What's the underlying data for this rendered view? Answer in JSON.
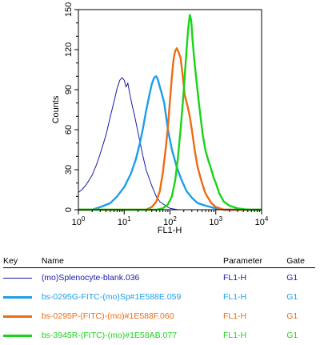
{
  "chart_data": {
    "type": "line",
    "title": "",
    "xlabel": "FL1-H",
    "ylabel": "Counts",
    "x_scale": "log",
    "xlim": [
      1,
      10000
    ],
    "ylim": [
      0,
      150
    ],
    "x_ticks": [
      {
        "value": 1,
        "base": "10",
        "exp": "0"
      },
      {
        "value": 10,
        "base": "10",
        "exp": "1"
      },
      {
        "value": 100,
        "base": "10",
        "exp": "2"
      },
      {
        "value": 1000,
        "base": "10",
        "exp": "3"
      },
      {
        "value": 10000,
        "base": "10",
        "exp": "4"
      }
    ],
    "y_ticks": [
      "0",
      "30",
      "60",
      "90",
      "120",
      "150"
    ],
    "grid": false,
    "series": [
      {
        "name": "(mo)Splenocyte-blank.036",
        "color": "#1a1aa8",
        "points": [
          [
            1,
            13
          ],
          [
            1.2,
            15
          ],
          [
            1.5,
            19
          ],
          [
            2,
            26
          ],
          [
            2.5,
            34
          ],
          [
            3,
            42
          ],
          [
            4,
            56
          ],
          [
            5,
            70
          ],
          [
            6,
            81
          ],
          [
            7,
            91
          ],
          [
            8,
            97
          ],
          [
            9,
            99
          ],
          [
            10,
            97
          ],
          [
            11,
            92
          ],
          [
            12,
            95
          ],
          [
            13,
            88
          ],
          [
            15,
            78
          ],
          [
            17,
            70
          ],
          [
            20,
            58
          ],
          [
            25,
            42
          ],
          [
            30,
            30
          ],
          [
            40,
            18
          ],
          [
            50,
            10
          ],
          [
            60,
            6
          ],
          [
            80,
            3
          ],
          [
            100,
            1
          ],
          [
            150,
            0
          ],
          [
            10000,
            0
          ]
        ]
      },
      {
        "name": "bs-0295G-FITC-(mo)Sp#1E588E.059",
        "color": "#1e9ee8",
        "points": [
          [
            1,
            0
          ],
          [
            2,
            0
          ],
          [
            3,
            2
          ],
          [
            5,
            5
          ],
          [
            7,
            10
          ],
          [
            10,
            17
          ],
          [
            14,
            27
          ],
          [
            18,
            38
          ],
          [
            22,
            50
          ],
          [
            26,
            62
          ],
          [
            30,
            74
          ],
          [
            35,
            85
          ],
          [
            40,
            94
          ],
          [
            45,
            99
          ],
          [
            50,
            100
          ],
          [
            55,
            97
          ],
          [
            60,
            92
          ],
          [
            65,
            88
          ],
          [
            75,
            80
          ],
          [
            90,
            60
          ],
          [
            110,
            45
          ],
          [
            140,
            32
          ],
          [
            180,
            22
          ],
          [
            230,
            14
          ],
          [
            300,
            9
          ],
          [
            400,
            5
          ],
          [
            600,
            3
          ],
          [
            1000,
            1
          ],
          [
            1500,
            0
          ],
          [
            10000,
            0
          ]
        ]
      },
      {
        "name": "bs-0295P-(FITC)-(mo)#1E588F.060",
        "color": "#ee6b12",
        "points": [
          [
            1,
            0
          ],
          [
            30,
            0
          ],
          [
            40,
            2
          ],
          [
            50,
            6
          ],
          [
            60,
            14
          ],
          [
            70,
            28
          ],
          [
            80,
            45
          ],
          [
            90,
            62
          ],
          [
            100,
            82
          ],
          [
            110,
            100
          ],
          [
            120,
            113
          ],
          [
            130,
            119
          ],
          [
            140,
            121
          ],
          [
            150,
            119
          ],
          [
            170,
            114
          ],
          [
            190,
            100
          ],
          [
            210,
            86
          ],
          [
            240,
            78
          ],
          [
            270,
            70
          ],
          [
            300,
            60
          ],
          [
            350,
            44
          ],
          [
            400,
            32
          ],
          [
            500,
            20
          ],
          [
            600,
            12
          ],
          [
            800,
            5
          ],
          [
            1000,
            2
          ],
          [
            1500,
            0
          ],
          [
            10000,
            0
          ]
        ]
      },
      {
        "name": "bs-3945R-(FITC)-(mo)#1E58AB.077",
        "color": "#19d419",
        "points": [
          [
            1,
            0
          ],
          [
            50,
            0
          ],
          [
            70,
            1
          ],
          [
            90,
            4
          ],
          [
            110,
            10
          ],
          [
            130,
            22
          ],
          [
            150,
            40
          ],
          [
            170,
            60
          ],
          [
            190,
            80
          ],
          [
            210,
            100
          ],
          [
            230,
            120
          ],
          [
            250,
            136
          ],
          [
            270,
            146
          ],
          [
            290,
            142
          ],
          [
            310,
            128
          ],
          [
            340,
            112
          ],
          [
            380,
            96
          ],
          [
            420,
            82
          ],
          [
            470,
            68
          ],
          [
            520,
            56
          ],
          [
            600,
            44
          ],
          [
            700,
            36
          ],
          [
            800,
            30
          ],
          [
            900,
            24
          ],
          [
            1000,
            20
          ],
          [
            1200,
            12
          ],
          [
            1500,
            6
          ],
          [
            2000,
            3
          ],
          [
            3000,
            1
          ],
          [
            5000,
            0
          ],
          [
            10000,
            0
          ]
        ]
      }
    ]
  },
  "key_table": {
    "headers": {
      "key": "Key",
      "name": "Name",
      "parameter": "Parameter",
      "gate": "Gate"
    },
    "rows": [
      {
        "name": "(mo)Splenocyte-blank.036",
        "parameter": "FL1-H",
        "gate": "G1",
        "color": "#1a1aa8",
        "line_weight": "thin"
      },
      {
        "name": "bs-0295G-FITC-(mo)Sp#1E588E.059",
        "parameter": "FL1-H",
        "gate": "G1",
        "color": "#1e9ee8",
        "line_weight": "thick"
      },
      {
        "name": "bs-0295P-(FITC)-(mo)#1E588F.060",
        "parameter": "FL1-H",
        "gate": "G1",
        "color": "#ee6b12",
        "line_weight": "thick"
      },
      {
        "name": "bs-3945R-(FITC)-(mo)#1E58AB.077",
        "parameter": "FL1-H",
        "gate": "G1",
        "color": "#19d419",
        "line_weight": "thick"
      }
    ]
  }
}
